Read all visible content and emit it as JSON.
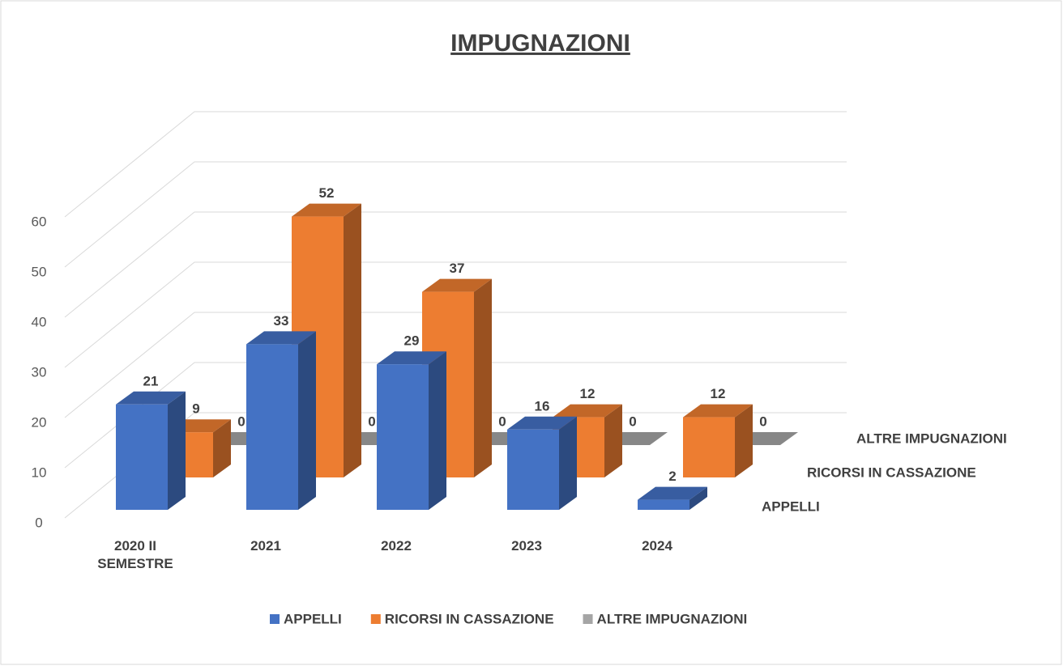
{
  "chart_data": {
    "type": "bar3d",
    "title": "IMPUGNAZIONI",
    "categories": [
      "2020 II SEMESTRE",
      "2021",
      "2022",
      "2023",
      "2024"
    ],
    "series": [
      {
        "name": "APPELLI",
        "color": "#4472c4",
        "values": [
          21,
          33,
          29,
          16,
          2
        ]
      },
      {
        "name": "RICORSI IN CASSAZIONE",
        "color": "#ed7d31",
        "values": [
          9,
          52,
          37,
          12,
          12
        ]
      },
      {
        "name": "ALTRE IMPUGNAZIONI",
        "color": "#a5a5a5",
        "values": [
          0,
          0,
          0,
          0,
          0
        ]
      }
    ],
    "ylim": [
      0,
      60
    ],
    "yticks": [
      0,
      10,
      20,
      30,
      40,
      50,
      60
    ],
    "grid": true,
    "legend": "bottom"
  }
}
